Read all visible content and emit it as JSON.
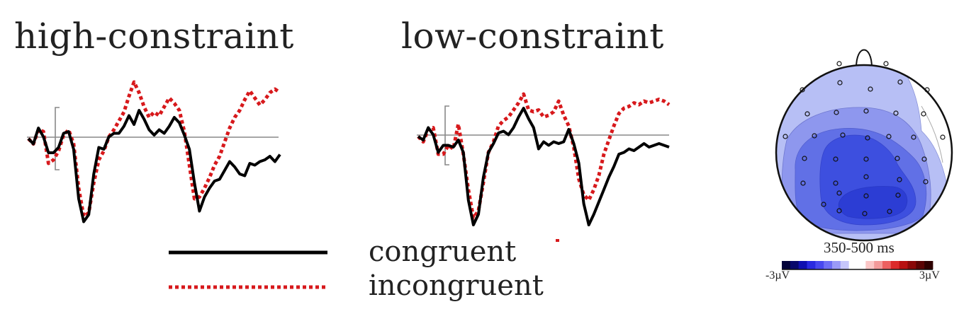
{
  "colors": {
    "congruent": "#000000",
    "incongruent": "#d7191c",
    "axis": "#888888",
    "head_outline": "#111111"
  },
  "chart_data": [
    {
      "type": "line",
      "title": "high-constraint",
      "x": [
        0,
        1,
        2,
        3,
        4,
        5,
        6,
        7,
        8,
        9,
        10,
        11,
        12,
        13,
        14,
        15,
        16,
        17,
        18,
        19,
        20,
        21,
        22,
        23,
        24,
        25,
        26,
        27,
        28,
        29,
        30,
        31,
        32,
        33,
        34,
        35,
        36,
        37,
        38,
        39,
        40,
        41,
        42,
        43,
        44,
        45,
        46,
        47,
        48,
        49,
        50
      ],
      "series": [
        {
          "name": "congruent",
          "values": [
            0,
            -0.3,
            0.6,
            0.1,
            -0.8,
            -0.8,
            -0.5,
            0.3,
            0.4,
            -0.6,
            -3.4,
            -4.7,
            -4.3,
            -2.0,
            -0.5,
            -0.6,
            0.1,
            0.3,
            0.3,
            0.7,
            1.3,
            0.8,
            1.6,
            1.1,
            0.5,
            0.2,
            0.5,
            0.3,
            0.7,
            1.2,
            0.9,
            0.2,
            -0.6,
            -2.5,
            -4.1,
            -3.3,
            -2.8,
            -2.4,
            -2.3,
            -1.8,
            -1.3,
            -1.6,
            -2.0,
            -2.1,
            -1.4,
            -1.5,
            -1.3,
            -1.2,
            -1.0,
            -1.3,
            -0.9
          ]
        },
        {
          "name": "incongruent",
          "values": [
            0,
            -0.3,
            0.5,
            0.4,
            -1.4,
            -1.2,
            -0.7,
            0.2,
            0.5,
            -0.3,
            -2.8,
            -4.4,
            -4.2,
            -2.5,
            -1.2,
            -0.7,
            0.1,
            0.5,
            1.0,
            1.5,
            2.4,
            3.2,
            2.6,
            1.8,
            1.2,
            1.5,
            1.3,
            1.8,
            2.3,
            2.0,
            1.6,
            0.4,
            -1.5,
            -3.4,
            -3.3,
            -2.8,
            -2.2,
            -1.5,
            -1.0,
            -0.2,
            0.6,
            1.2,
            1.6,
            2.2,
            2.7,
            2.3,
            1.9,
            2.2,
            2.6,
            2.8,
            2.6
          ]
        }
      ]
    },
    {
      "type": "line",
      "title": "low-constraint",
      "x": [
        0,
        1,
        2,
        3,
        4,
        5,
        6,
        7,
        8,
        9,
        10,
        11,
        12,
        13,
        14,
        15,
        16,
        17,
        18,
        19,
        20,
        21,
        22,
        23,
        24,
        25,
        26,
        27,
        28,
        29,
        30,
        31,
        32,
        33,
        34,
        35,
        36,
        37,
        38,
        39,
        40,
        41,
        42,
        43,
        44,
        45,
        46,
        47,
        48,
        49,
        50
      ],
      "series": [
        {
          "name": "congruent",
          "values": [
            0,
            -0.2,
            0.5,
            0.1,
            -0.9,
            -0.5,
            -0.5,
            -0.6,
            -0.2,
            -0.9,
            -3.6,
            -5.0,
            -4.4,
            -2.3,
            -0.9,
            -0.4,
            0.2,
            0.3,
            0.1,
            0.5,
            1.1,
            1.6,
            1.0,
            0.5,
            -0.7,
            -0.3,
            -0.5,
            -0.3,
            -0.4,
            -0.3,
            0.4,
            -0.4,
            -1.5,
            -3.8,
            -5.0,
            -4.4,
            -3.7,
            -3.0,
            -2.3,
            -1.7,
            -1.0,
            -0.9,
            -0.7,
            -0.8,
            -0.6,
            -0.4,
            -0.6,
            -0.5,
            -0.4,
            -0.5,
            -0.6
          ]
        },
        {
          "name": "incongruent",
          "values": [
            0,
            -0.3,
            0.4,
            0.5,
            -1.0,
            -1.0,
            -0.5,
            -0.7,
            0.7,
            -1.0,
            -3.0,
            -4.6,
            -4.2,
            -2.6,
            -0.9,
            -0.3,
            0.6,
            0.9,
            1.1,
            1.5,
            1.9,
            2.4,
            1.5,
            1.4,
            1.5,
            1.1,
            1.2,
            1.4,
            2.0,
            1.2,
            0.6,
            -0.6,
            -2.4,
            -3.3,
            -3.6,
            -3.0,
            -2.2,
            -1.0,
            -0.2,
            0.6,
            1.3,
            1.6,
            1.7,
            1.9,
            1.8,
            2.0,
            1.9,
            2.0,
            2.1,
            2.0,
            1.8
          ]
        }
      ]
    }
  ],
  "legend": {
    "congruent_label": "congruent",
    "incongruent_label": "incongruent"
  },
  "topomap": {
    "time_window": "350-500 ms",
    "scale_min": "-3µV",
    "scale_max": "3µV",
    "colorbar": [
      "#02023a",
      "#08086b",
      "#1010b0",
      "#2a2ae0",
      "#4848ee",
      "#6e6ef4",
      "#9a9af7",
      "#c6c6fb",
      "#ffffff",
      "#ffffff",
      "#fbc6c6",
      "#f39a9a",
      "#ec6060",
      "#dc2a2a",
      "#b81010",
      "#8a0808",
      "#5a0404",
      "#2e0101"
    ],
    "contour_fills": [
      "#b7bff5",
      "#8e97ee",
      "#6170e6",
      "#3d4fdf",
      "#2c3dd4"
    ]
  }
}
